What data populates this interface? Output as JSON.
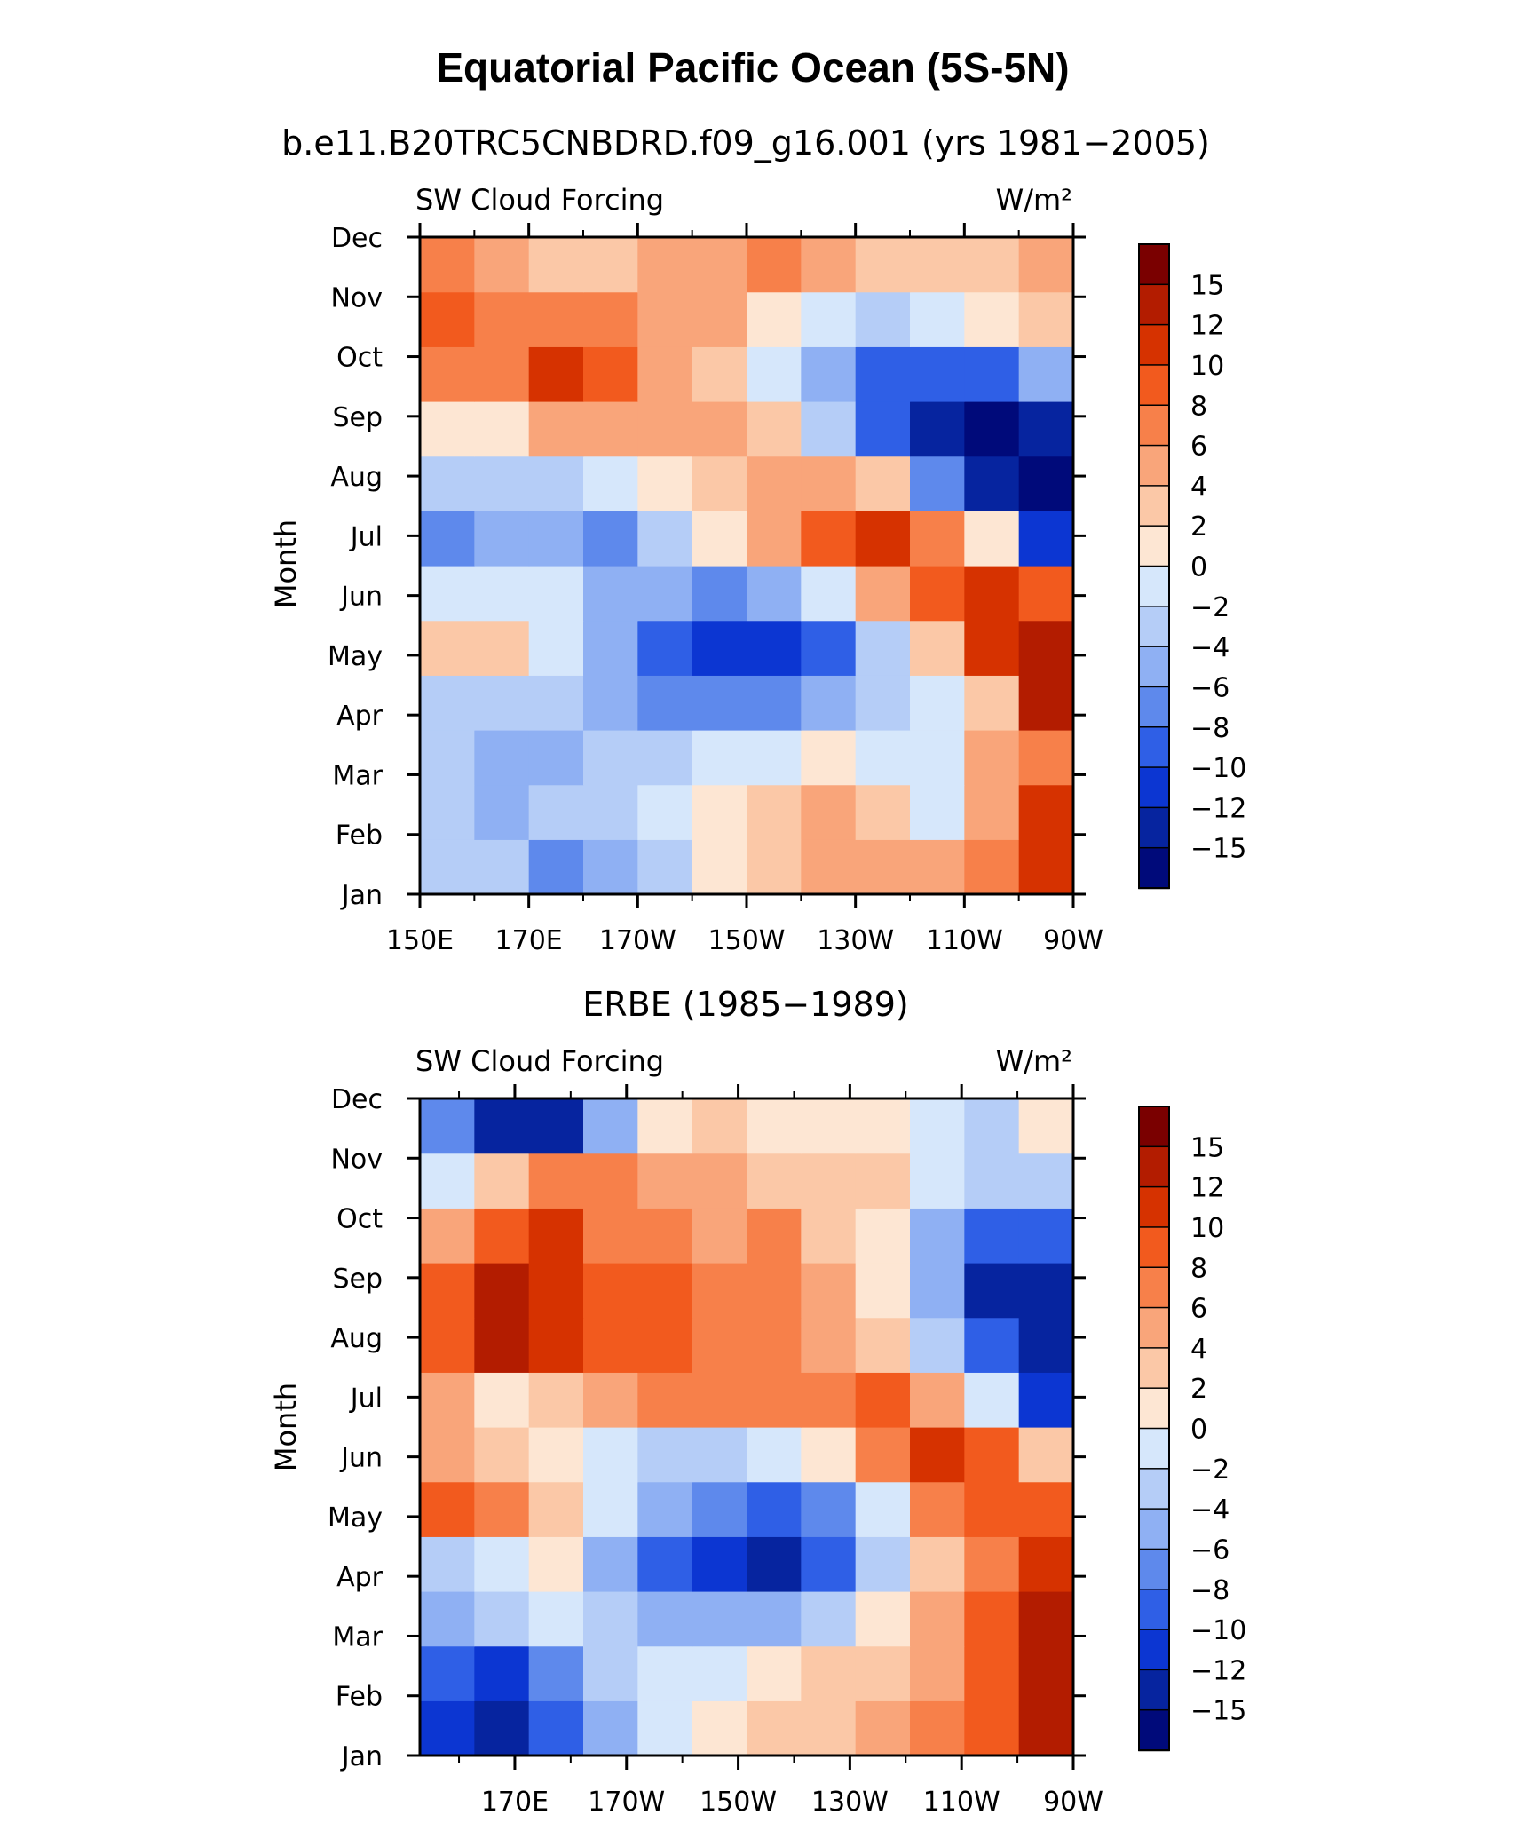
{
  "figure": {
    "title": "Equatorial Pacific Ocean (5S-5N)",
    "colorbar_labels": [
      "15",
      "12",
      "10",
      "8",
      "6",
      "4",
      "2",
      "0",
      "−2",
      "−4",
      "−6",
      "−8",
      "−10",
      "−12",
      "−15"
    ],
    "colorbar_colors": [
      "#7a0000",
      "#b31c00",
      "#d63200",
      "#f25a1e",
      "#f7804a",
      "#f9a57a",
      "#fbc8a7",
      "#fde6d3",
      "#d6e7fb",
      "#b5cdf7",
      "#8fb0f3",
      "#5e89ec",
      "#2f5fe6",
      "#0c36d2",
      "#06249f",
      "#000a7a"
    ]
  },
  "chart_data": [
    {
      "type": "heatmap",
      "subtitle": "b.e11.B20TRC5CNBDRD.f09_g16.001 (yrs 1981−2005)",
      "left_label": "SW Cloud Forcing",
      "right_label": "W/m²",
      "ylabel": "Month",
      "x_ticks": [
        "150E",
        "170E",
        "170W",
        "150W",
        "130W",
        "110W",
        "90W"
      ],
      "y_ticks": [
        "Jan",
        "Feb",
        "Mar",
        "Apr",
        "May",
        "Jun",
        "Jul",
        "Aug",
        "Sep",
        "Oct",
        "Nov",
        "Dec"
      ],
      "x_range": [
        "150E",
        "90W"
      ],
      "levels": [
        -15,
        -12,
        -10,
        -8,
        -6,
        -4,
        -2,
        0,
        2,
        4,
        6,
        8,
        10,
        12,
        15
      ],
      "values": [
        [
          -3,
          -4,
          -7,
          -5,
          -3,
          0,
          2,
          4,
          4,
          4,
          6,
          11
        ],
        [
          -4,
          -6,
          -4,
          -3,
          -1,
          0,
          2,
          4,
          2,
          -1,
          5,
          10
        ],
        [
          -4,
          -5,
          -5,
          -4,
          -3,
          -2,
          -1,
          0,
          -1,
          -2,
          4,
          7
        ],
        [
          -3,
          -4,
          -4,
          -5,
          -7,
          -8,
          -7,
          -6,
          -4,
          -1,
          3,
          12
        ],
        [
          2,
          3,
          -2,
          -6,
          -10,
          -11,
          -11,
          -9,
          -4,
          3,
          10,
          14
        ],
        [
          -1,
          -2,
          -2,
          -5,
          -6,
          -7,
          -6,
          -2,
          5,
          9,
          11,
          8
        ],
        [
          -7,
          -5,
          -6,
          -7,
          -4,
          1,
          4,
          9,
          11,
          7,
          1,
          -12
        ],
        [
          -4,
          -3,
          -4,
          -2,
          1,
          3,
          5,
          5,
          2,
          -8,
          -14,
          -16
        ],
        [
          0,
          1,
          4,
          4,
          5,
          5,
          2,
          -3,
          -10,
          -14,
          -16,
          -14
        ],
        [
          6,
          7,
          11,
          9,
          4,
          2,
          -1,
          -6,
          -10,
          -10,
          -9,
          -6
        ],
        [
          8,
          7,
          6,
          6,
          5,
          4,
          1,
          -2,
          -3,
          -2,
          0,
          2
        ],
        [
          7,
          5,
          3,
          3,
          4,
          5,
          6,
          5,
          3,
          2,
          3,
          5
        ]
      ]
    },
    {
      "type": "heatmap",
      "subtitle": "ERBE (1985−1989)",
      "left_label": "SW Cloud Forcing",
      "right_label": "W/m²",
      "ylabel": "Month",
      "x_ticks": [
        "170E",
        "170W",
        "150W",
        "130W",
        "110W",
        "90W"
      ],
      "y_ticks": [
        "Jan",
        "Feb",
        "Mar",
        "Apr",
        "May",
        "Jun",
        "Jul",
        "Aug",
        "Sep",
        "Oct",
        "Nov",
        "Dec"
      ],
      "levels": [
        -15,
        -12,
        -10,
        -8,
        -6,
        -4,
        -2,
        0,
        2,
        4,
        6,
        8,
        10,
        12,
        15
      ],
      "values": [
        [
          -12,
          -14,
          -10,
          -6,
          -2,
          0,
          2,
          2,
          4,
          6,
          8,
          12
        ],
        [
          -10,
          -12,
          -8,
          -4,
          -2,
          -1,
          1,
          2,
          3,
          5,
          9,
          14
        ],
        [
          -6,
          -4,
          -2,
          -4,
          -6,
          -6,
          -5,
          -3,
          0,
          4,
          8,
          13
        ],
        [
          -3,
          -1,
          0,
          -6,
          -10,
          -12,
          -13,
          -9,
          -4,
          3,
          7,
          10
        ],
        [
          8,
          6,
          3,
          -2,
          -5,
          -8,
          -9,
          -7,
          -2,
          6,
          9,
          9
        ],
        [
          4,
          3,
          1,
          -2,
          -3,
          -3,
          -2,
          1,
          6,
          10,
          8,
          3
        ],
        [
          4,
          1,
          2,
          4,
          6,
          7,
          6,
          7,
          9,
          4,
          -2,
          -12
        ],
        [
          9,
          12,
          11,
          9,
          8,
          7,
          6,
          5,
          3,
          -3,
          -10,
          -15
        ],
        [
          9,
          12,
          11,
          9,
          8,
          7,
          6,
          4,
          1,
          -6,
          -14,
          -14
        ],
        [
          5,
          8,
          10,
          7,
          6,
          5,
          6,
          3,
          0,
          -5,
          -10,
          -10
        ],
        [
          -1,
          2,
          6,
          6,
          5,
          4,
          3,
          3,
          2,
          -2,
          -4,
          -3
        ],
        [
          -8,
          -14,
          -15,
          -6,
          1,
          2,
          1,
          0,
          0,
          -2,
          -3,
          1
        ]
      ]
    }
  ]
}
